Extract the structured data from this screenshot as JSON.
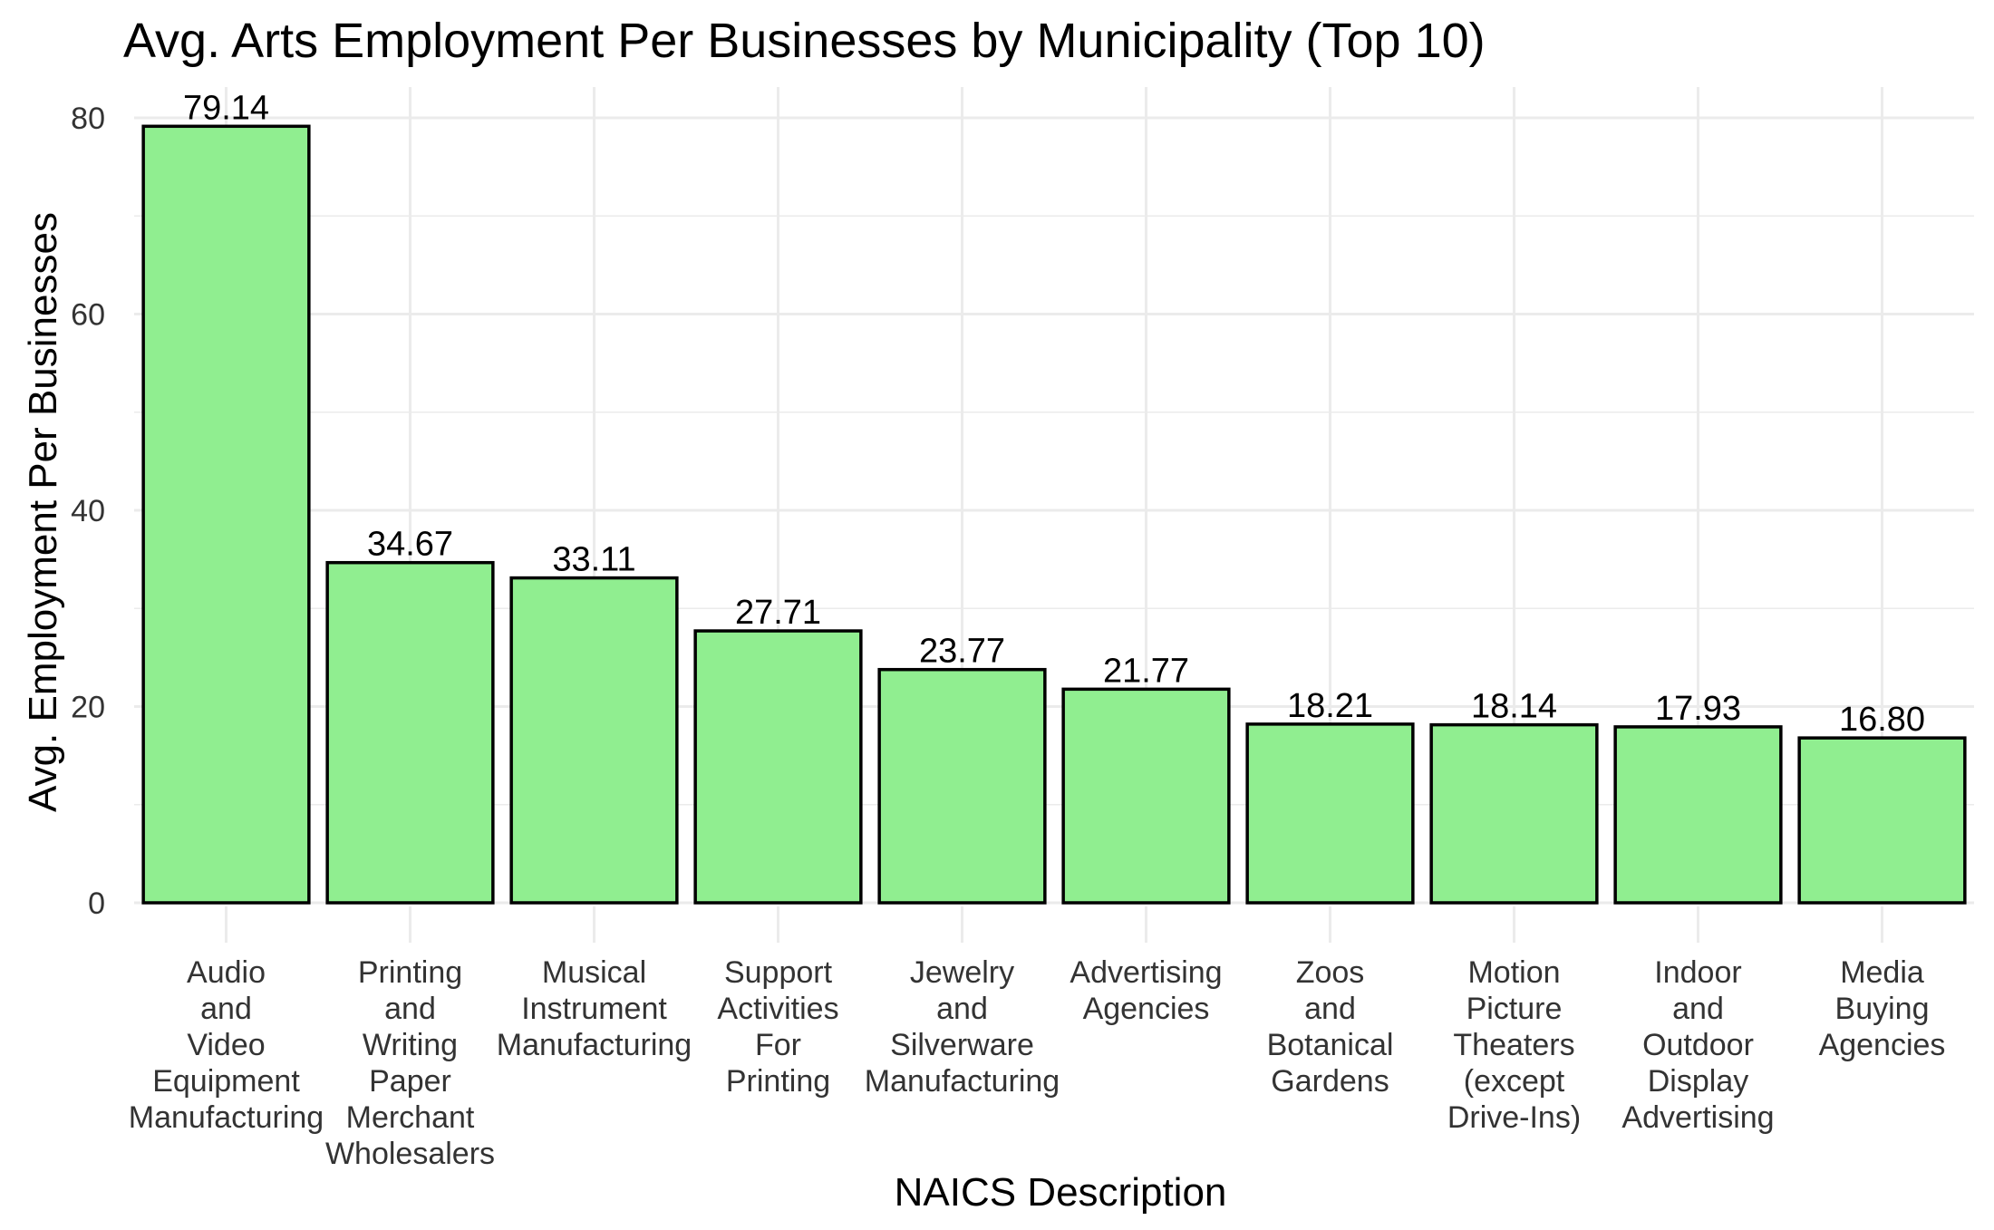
{
  "chart_data": {
    "type": "bar",
    "title": "Avg. Arts Employment Per Businesses by Municipality (Top 10)",
    "xlabel": "NAICS Description",
    "ylabel": "Avg. Employment Per Businesses",
    "categories": [
      "Audio and Video Equipment Manufacturing",
      "Printing and Writing Paper Merchant Wholesalers",
      "Musical Instrument Manufacturing",
      "Support Activities For Printing",
      "Jewelry and Silverware Manufacturing",
      "Advertising Agencies",
      "Zoos and Botanical Gardens",
      "Motion Picture Theaters (except Drive-Ins)",
      "Indoor and Outdoor Display Advertising",
      "Media Buying Agencies"
    ],
    "category_label_lines": [
      [
        "Audio",
        "and",
        "Video",
        "Equipment",
        "Manufacturing"
      ],
      [
        "Printing",
        "and",
        "Writing",
        "Paper",
        "Merchant",
        "Wholesalers"
      ],
      [
        "Musical",
        "Instrument",
        "Manufacturing"
      ],
      [
        "Support",
        "Activities",
        "For",
        "Printing"
      ],
      [
        "Jewelry",
        "and",
        "Silverware",
        "Manufacturing"
      ],
      [
        "Advertising",
        "Agencies"
      ],
      [
        "Zoos",
        "and",
        "Botanical",
        "Gardens"
      ],
      [
        "Motion",
        "Picture",
        "Theaters",
        "(except",
        "Drive-Ins)"
      ],
      [
        "Indoor",
        "and",
        "Outdoor",
        "Display",
        "Advertising"
      ],
      [
        "Media",
        "Buying",
        "Agencies"
      ]
    ],
    "values": [
      79.14,
      34.67,
      33.11,
      27.71,
      23.77,
      21.77,
      18.21,
      18.14,
      17.93,
      16.8
    ],
    "value_labels": [
      "79.14",
      "34.67",
      "33.11",
      "27.71",
      "23.77",
      "21.77",
      "18.21",
      "18.14",
      "17.93",
      "16.80"
    ],
    "ylim": [
      0,
      80
    ],
    "yticks": [
      0,
      20,
      40,
      60,
      80
    ],
    "grid": true,
    "legend": "none",
    "colors": {
      "bar_fill": "#90EE90",
      "bar_stroke": "#000000",
      "grid": "#EBEBEB"
    }
  }
}
